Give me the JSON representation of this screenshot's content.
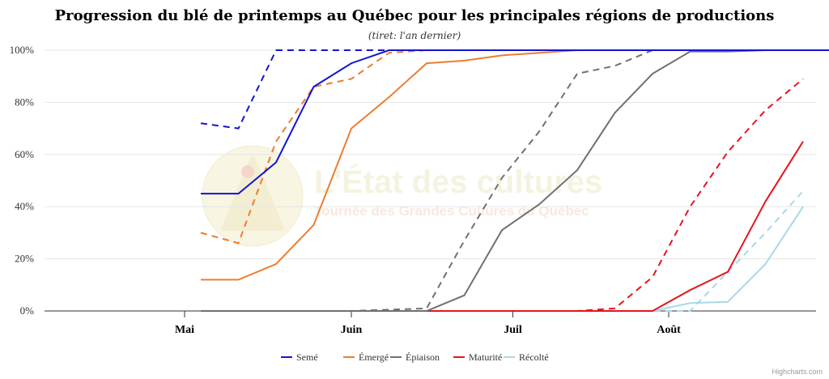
{
  "chart_data": {
    "type": "line",
    "title": "Progression du blé de printemps au Québec pour les principales régions de productions",
    "subtitle": "(tiret: l'an dernier)",
    "y_tick_labels": [
      "0%",
      "20%",
      "40%",
      "60%",
      "80%",
      "100%"
    ],
    "ylim": [
      0,
      100
    ],
    "x_tick_labels": [
      "Mai",
      "Juin",
      "Juil",
      "Août"
    ],
    "grid": true,
    "legend_position": "bottom",
    "credit": "Highcharts.com",
    "watermark": {
      "line1": "L'État des cultures",
      "line2": "Tournée des Grandes Cultures du Québec"
    },
    "dates": [
      "05-04",
      "05-11",
      "05-18",
      "05-25",
      "06-01",
      "06-08",
      "06-15",
      "06-22",
      "06-29",
      "07-06",
      "07-13",
      "07-20",
      "07-27",
      "08-03",
      "08-10",
      "08-17",
      "08-24",
      "08-31"
    ],
    "series": [
      {
        "name": "Semé",
        "color": "#1414d2",
        "values": [
          45,
          45,
          57,
          86,
          95,
          100,
          100,
          100,
          100,
          100,
          100,
          100,
          100,
          100,
          100,
          100,
          100,
          100
        ],
        "last_year": [
          72,
          70,
          100,
          100,
          100,
          100,
          100,
          100,
          100,
          100,
          100,
          100,
          100,
          100,
          100,
          100,
          100,
          100
        ]
      },
      {
        "name": "Émergé",
        "color": "#ed7d31",
        "values": [
          12,
          12,
          18,
          33,
          70,
          82,
          95,
          96,
          98,
          99,
          100,
          100,
          100,
          100,
          100,
          100,
          100,
          100
        ],
        "last_year": [
          30,
          26,
          65,
          86,
          89,
          99,
          100,
          100,
          100,
          100,
          100,
          100,
          100,
          100,
          100,
          100,
          100,
          100
        ]
      },
      {
        "name": "Épiaison",
        "color": "#707070",
        "values": [
          0,
          0,
          0,
          0,
          0,
          0,
          0,
          6,
          31,
          41,
          54,
          76,
          91,
          99.5,
          99.5,
          100,
          100,
          100
        ],
        "last_year": [
          0,
          0,
          0,
          0,
          0,
          0.5,
          1,
          27,
          51,
          69,
          91,
          94,
          100,
          100,
          100,
          100,
          100,
          100
        ]
      },
      {
        "name": "Maturité",
        "color": "#e8141e",
        "values": [
          0,
          0,
          0,
          0,
          0,
          0,
          0,
          0,
          0,
          0,
          0,
          0,
          0,
          8,
          15,
          42,
          65,
          null
        ],
        "last_year": [
          0,
          0,
          0,
          0,
          0,
          0,
          0,
          0,
          0,
          0,
          0,
          1,
          13,
          40,
          61,
          77,
          89,
          null
        ]
      },
      {
        "name": "Récolté",
        "color": "#a8d8e6",
        "values": [
          0,
          0,
          0,
          0,
          0,
          0,
          0,
          0,
          0,
          0,
          0,
          0,
          0,
          3,
          3.5,
          18,
          40,
          null
        ],
        "last_year": [
          0,
          0,
          0,
          0,
          0,
          0,
          0,
          0,
          0,
          0,
          0,
          0,
          0,
          0,
          15,
          30,
          46,
          null
        ]
      }
    ]
  }
}
